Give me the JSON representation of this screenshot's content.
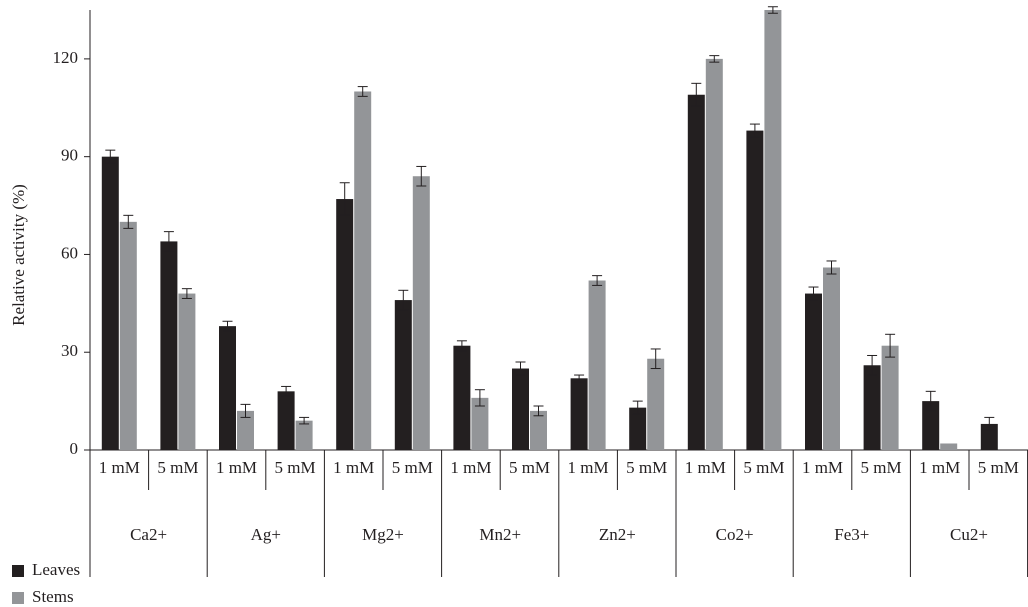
{
  "chart_data": {
    "type": "bar",
    "y_label": "Relative activity (%)",
    "groups": [
      "Ca2+",
      "Ag+",
      "Mg2+",
      "Mn2+",
      "Zn2+",
      "Co2+",
      "Fe3+",
      "Cu2+"
    ],
    "categories": [
      "1 mM",
      "5 mM",
      "1 mM",
      "5 mM",
      "1 mM",
      "5 mM",
      "1 mM",
      "5 mM",
      "1 mM",
      "5 mM",
      "1 mM",
      "5 mM",
      "1 mM",
      "5 mM",
      "1 mM",
      "5 mM"
    ],
    "series": [
      {
        "name": "Leaves",
        "color": "#231f20",
        "values": [
          90,
          64,
          38,
          18,
          77,
          46,
          32,
          25,
          22,
          13,
          109,
          98,
          48,
          26,
          15,
          8
        ],
        "errors": [
          2,
          3,
          1.5,
          1.5,
          5,
          3,
          1.5,
          2,
          1,
          2,
          3.5,
          2,
          2,
          3,
          3,
          2
        ]
      },
      {
        "name": "Stems",
        "color": "#939598",
        "values": [
          70,
          48,
          12,
          9,
          110,
          84,
          16,
          12,
          52,
          28,
          120,
          135,
          56,
          32,
          2,
          0
        ],
        "errors": [
          2,
          1.5,
          2,
          1,
          1.5,
          3,
          2.5,
          1.5,
          1.5,
          3,
          1,
          1,
          2,
          3.5,
          null,
          null
        ]
      }
    ],
    "ylim": [
      0,
      135
    ],
    "yticks": [
      0,
      30,
      60,
      90,
      120
    ]
  }
}
